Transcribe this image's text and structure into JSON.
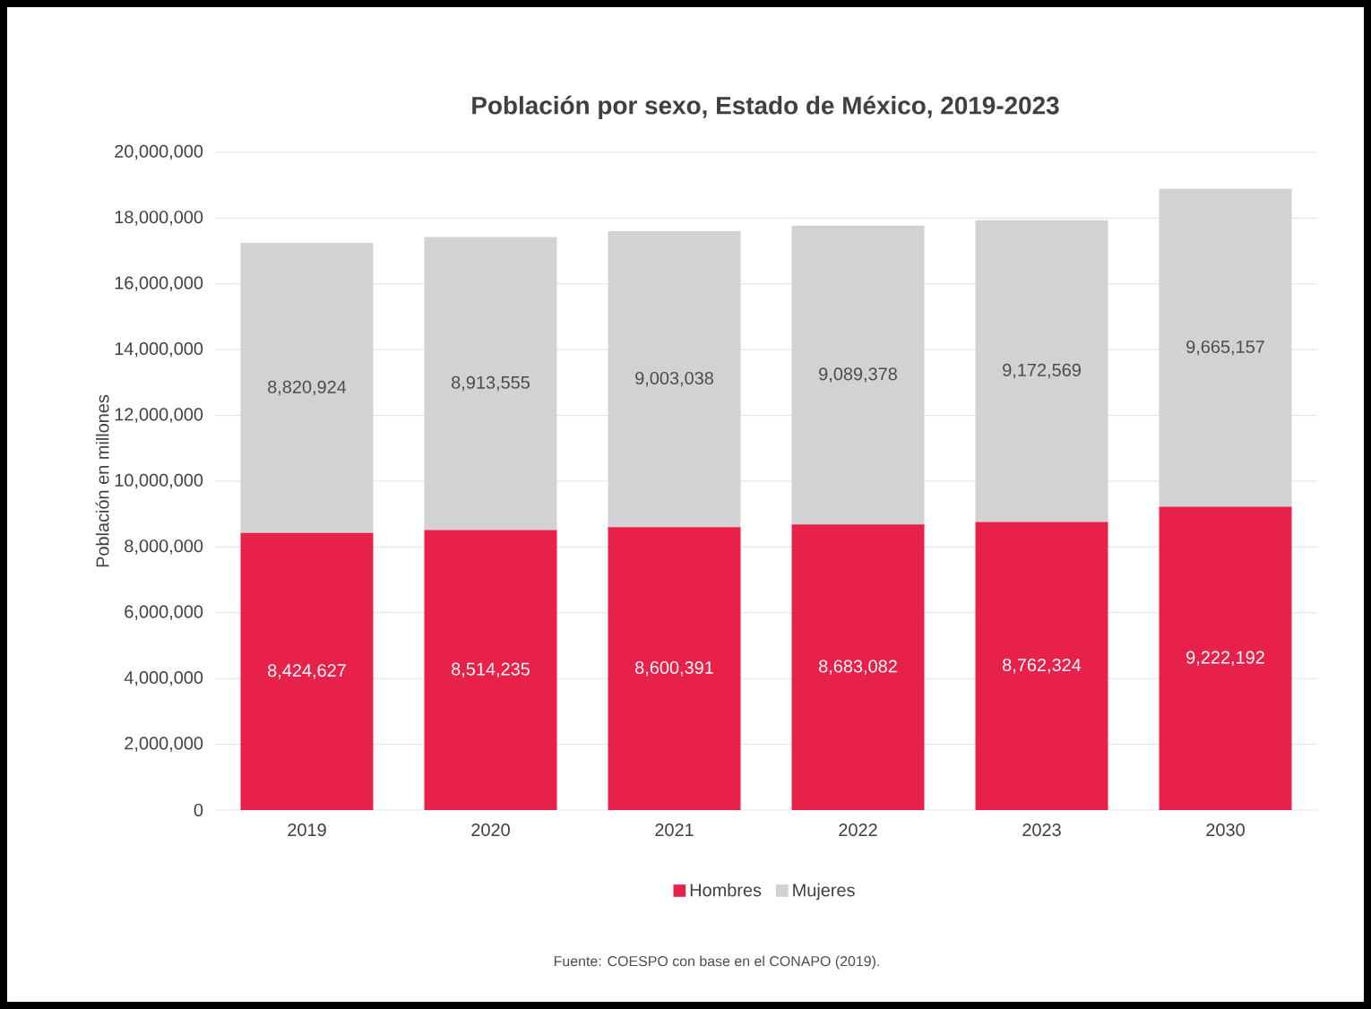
{
  "chart_data": {
    "type": "bar",
    "stacked": true,
    "title": "Población por sexo, Estado de México, 2019-2023",
    "ylabel": "Población en millones",
    "categories": [
      "2019",
      "2020",
      "2021",
      "2022",
      "2023",
      "2030"
    ],
    "series": [
      {
        "name": "Hombres",
        "color": "#e8214a",
        "values": [
          8424627,
          8514235,
          8600391,
          8683082,
          8762324,
          9222192
        ],
        "value_labels": [
          "8,424,627",
          "8,514,235",
          "8,600,391",
          "8,683,082",
          "8,762,324",
          "9,222,192"
        ]
      },
      {
        "name": "Mujeres",
        "color": "#d2d2d4",
        "values": [
          8820924,
          8913555,
          9003038,
          9089378,
          9172569,
          9665157
        ],
        "value_labels": [
          "8,820,924",
          "8,913,555",
          "9,003,038",
          "9,089,378",
          "9,172,569",
          "9,665,157"
        ]
      }
    ],
    "ylim": [
      0,
      20000000
    ],
    "yticks": [
      0,
      {
        "value": 2000000,
        "label": "2,000,000"
      },
      {
        "value": 4000000,
        "label": "4,000,000"
      },
      {
        "value": 6000000,
        "label": "6,000,000"
      },
      {
        "value": 8000000,
        "label": "8,000,000"
      },
      {
        "value": 10000000,
        "label": "10,000,000"
      },
      {
        "value": 12000000,
        "label": "12,000,000"
      },
      {
        "value": 14000000,
        "label": "14,000,000"
      },
      {
        "value": 16000000,
        "label": "16,000,000"
      },
      {
        "value": 18000000,
        "label": "18,000,000"
      },
      {
        "value": 20000000,
        "label": "20,000,000"
      }
    ],
    "grid": "y",
    "legend": "bottom",
    "annotations": [
      "Fuente: COESPO con base en el CONAPO (2019)."
    ]
  }
}
